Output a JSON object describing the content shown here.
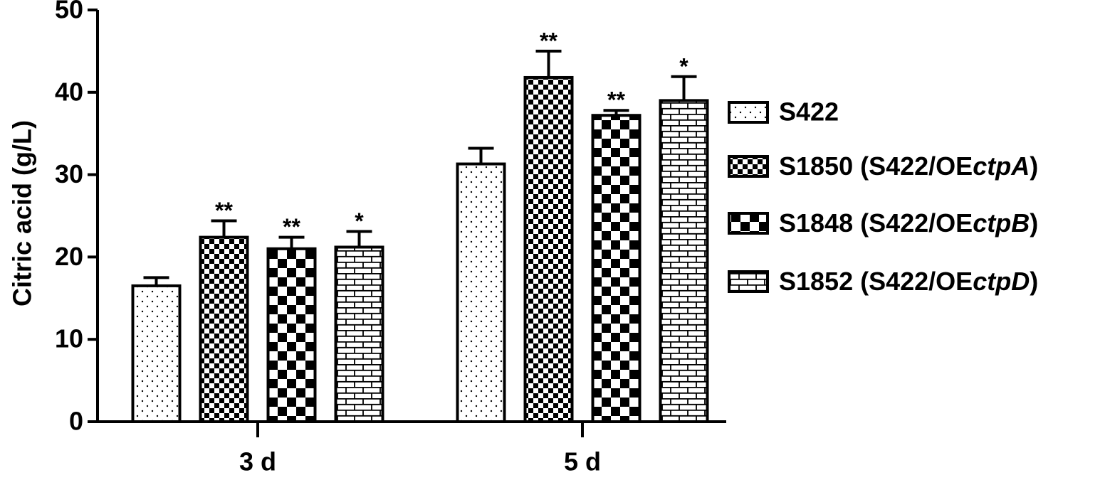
{
  "chart_data": {
    "type": "bar",
    "y_label": "Citric acid (g/L)",
    "categories": [
      "3 d",
      "5 d"
    ],
    "series": [
      {
        "name": "S422",
        "color": "#000000",
        "pattern": "dots",
        "values": [
          16.5,
          31.3
        ],
        "errors": [
          1.0,
          1.9
        ],
        "annotations": [
          null,
          null
        ]
      },
      {
        "name": "S1850 (S422/OEctpA)",
        "color": "#000000",
        "pattern": "fine-checker",
        "values": [
          22.4,
          41.8
        ],
        "errors": [
          2.0,
          3.2
        ],
        "annotations": [
          "**",
          "**"
        ]
      },
      {
        "name": "S1848 (S422/OEctpB)",
        "color": "#000000",
        "pattern": "checker",
        "values": [
          21.0,
          37.2
        ],
        "errors": [
          1.4,
          0.6
        ],
        "annotations": [
          "**",
          "**"
        ]
      },
      {
        "name": "S1852 (S422/OEctpD)",
        "color": "#000000",
        "pattern": "bricks",
        "values": [
          21.2,
          39.0
        ],
        "errors": [
          1.9,
          2.9
        ],
        "annotations": [
          "*",
          "*"
        ]
      }
    ],
    "ylim": [
      0,
      50
    ],
    "yticks": [
      0,
      10,
      20,
      30,
      40,
      50
    ],
    "grid": false,
    "legend": "right"
  }
}
